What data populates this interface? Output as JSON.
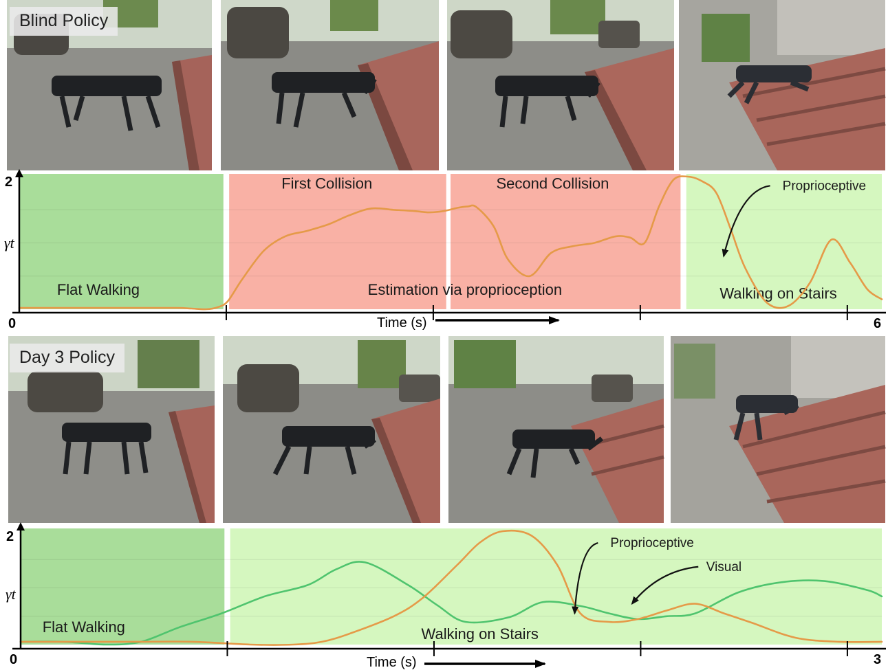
{
  "panels": [
    {
      "policy_label": "Blind Policy",
      "frames": [
        {
          "name": "frame-1",
          "scene": "flat-walking"
        },
        {
          "name": "frame-2",
          "scene": "first-collision"
        },
        {
          "name": "frame-3",
          "scene": "second-collision"
        },
        {
          "name": "frame-4",
          "scene": "climbing-stairs"
        }
      ]
    },
    {
      "policy_label": "Day 3 Policy",
      "frames": [
        {
          "name": "frame-1",
          "scene": "flat-walking"
        },
        {
          "name": "frame-2",
          "scene": "approaching-stairs"
        },
        {
          "name": "frame-3",
          "scene": "first-step"
        },
        {
          "name": "frame-4",
          "scene": "climbing-stairs"
        }
      ]
    }
  ],
  "chart_data": [
    {
      "type": "line",
      "xlabel": "Time (s)",
      "ylabel": "γt",
      "xlim": [
        0,
        6
      ],
      "ylim": [
        0,
        2
      ],
      "x_tick_labels": [
        {
          "value": 0,
          "label": "0"
        },
        {
          "value": 6,
          "label": "6"
        }
      ],
      "y_tick_labels": [
        {
          "value": 2,
          "label": "2"
        }
      ],
      "minor_x_ticks": [
        1.44,
        2.88,
        4.32,
        5.76
      ],
      "regions": [
        {
          "x0": 0,
          "x1": 1.42,
          "color": "#a9dd9a",
          "label": "Flat Walking",
          "label_x": 0.55,
          "label_y": 0.22
        },
        {
          "x0": 1.46,
          "x1": 2.97,
          "color": "#f9b1a5",
          "label": "First Collision",
          "label_x": 2.14,
          "label_y": 1.82
        },
        {
          "x0": 3.0,
          "x1": 4.6,
          "color": "#f9b1a5",
          "label": "Second Collision",
          "label_x": 3.71,
          "label_y": 1.82
        },
        {
          "x0": 4.64,
          "x1": 6.0,
          "color": "#d5f7bf",
          "label": "Walking on Stairs",
          "label_x": 5.28,
          "label_y": 0.16
        }
      ],
      "annotations": [
        {
          "text": "Estimation via proprioception",
          "x": 3.1,
          "y": 0.22
        },
        {
          "text": "Proprioceptive",
          "x": 5.6,
          "y": 1.8,
          "arrow_to": [
            4.9,
            0.8
          ]
        }
      ],
      "series": [
        {
          "name": "Proprioceptive",
          "color": "#e59a48",
          "x": [
            0,
            0.3,
            0.6,
            0.9,
            1.1,
            1.2,
            1.3,
            1.38,
            1.45,
            1.55,
            1.7,
            1.85,
            2.0,
            2.15,
            2.3,
            2.45,
            2.6,
            2.75,
            2.85,
            2.95,
            3.05,
            3.12,
            3.18,
            3.3,
            3.4,
            3.55,
            3.7,
            3.85,
            4.0,
            4.15,
            4.25,
            4.35,
            4.45,
            4.55,
            4.65,
            4.75,
            4.85,
            4.95,
            5.05,
            5.2,
            5.35,
            5.5,
            5.65,
            5.78,
            5.9,
            6.0
          ],
          "y": [
            0.02,
            0.02,
            0.02,
            0.02,
            0.02,
            0.01,
            0.0,
            0.03,
            0.12,
            0.45,
            0.88,
            1.1,
            1.18,
            1.28,
            1.42,
            1.52,
            1.5,
            1.48,
            1.46,
            1.48,
            1.53,
            1.55,
            1.54,
            1.25,
            0.75,
            0.5,
            0.85,
            0.95,
            1.0,
            1.1,
            1.08,
            1.0,
            1.55,
            1.95,
            2.0,
            1.93,
            1.75,
            1.2,
            0.62,
            0.1,
            0.05,
            0.4,
            1.05,
            0.7,
            0.3,
            0.15
          ]
        }
      ]
    },
    {
      "type": "line",
      "xlabel": "Time (s)",
      "ylabel": "γt",
      "xlim": [
        0,
        3
      ],
      "ylim": [
        0,
        2
      ],
      "x_tick_labels": [
        {
          "value": 0,
          "label": "0"
        },
        {
          "value": 3,
          "label": "3"
        }
      ],
      "y_tick_labels": [
        {
          "value": 2,
          "label": "2"
        }
      ],
      "minor_x_ticks": [
        0.72,
        1.44,
        2.16,
        2.88
      ],
      "regions": [
        {
          "x0": 0,
          "x1": 0.71,
          "color": "#a9dd9a",
          "label": "Flat Walking",
          "label_x": 0.22,
          "label_y": 0.22
        },
        {
          "x0": 0.73,
          "x1": 3.0,
          "color": "#d5f7bf",
          "label": "Walking on Stairs",
          "label_x": 1.6,
          "label_y": 0.1
        }
      ],
      "annotations": [
        {
          "text": "Proprioceptive",
          "x": 2.2,
          "y": 1.72,
          "arrow_to": [
            1.93,
            0.55
          ]
        },
        {
          "text": "Visual",
          "x": 2.45,
          "y": 1.3,
          "arrow_to": [
            2.13,
            0.72
          ]
        }
      ],
      "series": [
        {
          "name": "Visual",
          "color": "#4fc46e",
          "x": [
            0,
            0.15,
            0.3,
            0.42,
            0.55,
            0.7,
            0.85,
            1.0,
            1.1,
            1.2,
            1.35,
            1.45,
            1.55,
            1.7,
            1.82,
            1.95,
            2.05,
            2.15,
            2.25,
            2.35,
            2.5,
            2.65,
            2.8,
            2.95,
            3.0
          ],
          "y": [
            0.05,
            0.05,
            0.0,
            0.05,
            0.3,
            0.55,
            0.85,
            1.05,
            1.33,
            1.45,
            1.05,
            0.7,
            0.4,
            0.48,
            0.75,
            0.68,
            0.55,
            0.45,
            0.5,
            0.55,
            0.92,
            1.1,
            1.12,
            0.96,
            0.85
          ]
        },
        {
          "name": "Proprioceptive",
          "color": "#e59a48",
          "x": [
            0,
            0.2,
            0.4,
            0.6,
            0.8,
            0.95,
            1.05,
            1.15,
            1.3,
            1.4,
            1.52,
            1.6,
            1.68,
            1.78,
            1.87,
            1.95,
            2.05,
            2.15,
            2.25,
            2.35,
            2.45,
            2.55,
            2.7,
            2.85,
            3.0
          ],
          "y": [
            0.05,
            0.05,
            0.05,
            0.05,
            0.0,
            0.0,
            0.05,
            0.2,
            0.5,
            0.82,
            1.4,
            1.8,
            2.0,
            1.92,
            1.4,
            0.55,
            0.4,
            0.45,
            0.6,
            0.72,
            0.55,
            0.38,
            0.12,
            0.05,
            0.05
          ]
        }
      ]
    }
  ]
}
